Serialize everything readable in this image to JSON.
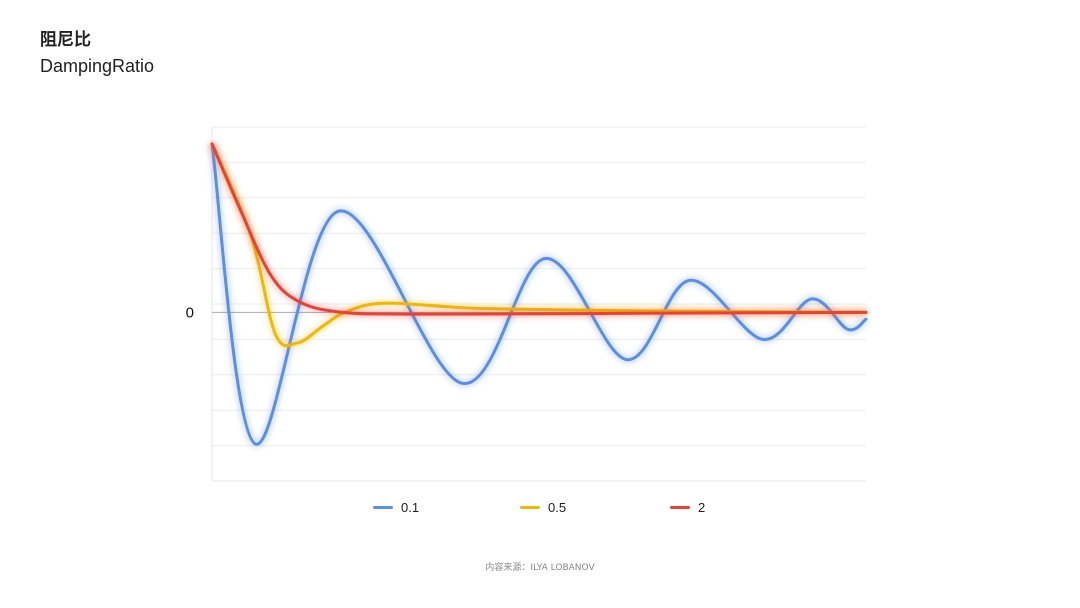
{
  "header": {
    "title_cn": "阻尼比",
    "title_en": "DampingRatio"
  },
  "source": "内容来源：ILYA LOBANOV",
  "chart_data": {
    "type": "line",
    "title": "阻尼比 DampingRatio",
    "xlabel": "",
    "ylabel": "",
    "yticks": [
      {
        "value": 0,
        "label": "0"
      }
    ],
    "xlim": [
      0,
      10
    ],
    "ylim": [
      -1,
      1.1
    ],
    "grid": true,
    "legend_position": "bottom",
    "series": [
      {
        "name": "0.1",
        "color": "#5B8EE6",
        "points": [
          [
            0,
            1.0
          ],
          [
            0.66,
            -0.78
          ],
          [
            1.93,
            0.6
          ],
          [
            3.82,
            -0.42
          ],
          [
            5.09,
            0.32
          ],
          [
            6.34,
            -0.28
          ],
          [
            7.3,
            0.19
          ],
          [
            8.42,
            -0.16
          ],
          [
            9.17,
            0.08
          ],
          [
            9.72,
            -0.1
          ],
          [
            10,
            -0.04
          ]
        ]
      },
      {
        "name": "0.5",
        "color": "#F2B705",
        "points": [
          [
            0,
            1.0
          ],
          [
            0.6,
            0.45
          ],
          [
            0.97,
            -0.13
          ],
          [
            1.31,
            -0.18
          ],
          [
            1.7,
            -0.08
          ],
          [
            2.03,
            0.0
          ],
          [
            2.63,
            0.055
          ],
          [
            4.0,
            0.025
          ],
          [
            6.0,
            0.012
          ],
          [
            8.0,
            0.005
          ],
          [
            10,
            0.0
          ]
        ]
      },
      {
        "name": "2",
        "color": "#EC4034",
        "points": [
          [
            0,
            1.0
          ],
          [
            0.42,
            0.62
          ],
          [
            0.9,
            0.22
          ],
          [
            1.35,
            0.06
          ],
          [
            2.0,
            0.0
          ],
          [
            3.0,
            -0.01
          ],
          [
            5.0,
            -0.008
          ],
          [
            7.0,
            -0.004
          ],
          [
            10,
            0.0
          ]
        ]
      }
    ]
  }
}
